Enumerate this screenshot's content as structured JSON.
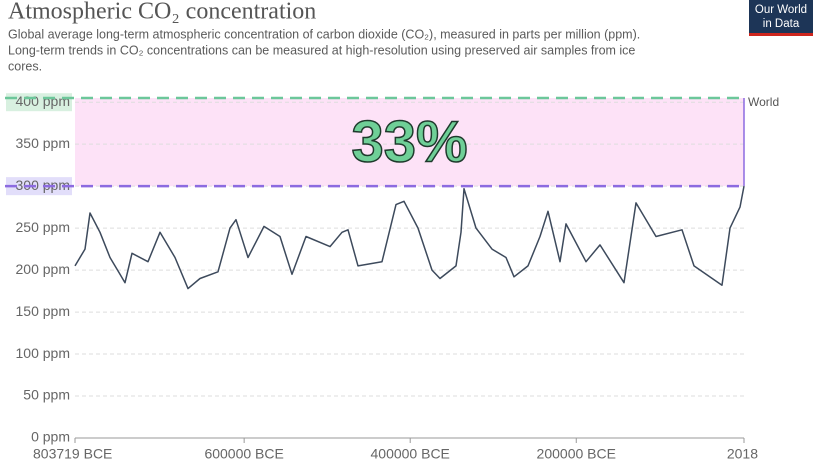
{
  "chart_data": {
    "type": "line",
    "title": "Atmospheric CO₂ concentration",
    "subtitle": [
      "Global average long-term atmospheric concentration of carbon dioxide (CO₂), measured in parts per million (ppm).",
      "Long-term trends in CO₂ concentrations can be measured at high-resolution using preserved air samples from ice",
      "cores."
    ],
    "logo": [
      "Our World",
      "in Data"
    ],
    "annotation": "33%",
    "x": [
      -803719,
      -791700,
      -785650,
      -773600,
      -761600,
      -749500,
      -743500,
      -735100,
      -715800,
      -701300,
      -683300,
      -667600,
      -653200,
      -631500,
      -617000,
      -609800,
      -595400,
      -576100,
      -556800,
      -542400,
      -525500,
      -496600,
      -482100,
      -474900,
      -462900,
      -434000,
      -417100,
      -407500,
      -390600,
      -373700,
      -364100,
      -344800,
      -338800,
      -335200,
      -320800,
      -301500,
      -284600,
      -275000,
      -258100,
      -243700,
      -234000,
      -219600,
      -212400,
      -188300,
      -171400,
      -142500,
      -128100,
      -104000,
      -72600,
      -58200,
      -24500,
      -14800,
      -2800,
      2018
    ],
    "series": [
      {
        "name": "World",
        "color": "#3d4a5c",
        "values": [
          205,
          225,
          268,
          245,
          215,
          195,
          185,
          220,
          210,
          245,
          215,
          178,
          190,
          198,
          250,
          260,
          215,
          252,
          240,
          195,
          240,
          228,
          245,
          248,
          205,
          210,
          278,
          282,
          250,
          200,
          190,
          205,
          245,
          297,
          250,
          225,
          215,
          192,
          205,
          240,
          270,
          210,
          255,
          210,
          230,
          185,
          280,
          240,
          248,
          205,
          182,
          250,
          275,
          300
        ]
      }
    ],
    "xlim": [
      -803719,
      2018
    ],
    "xticks": [
      {
        "value": -803719,
        "label": "803719 BCE"
      },
      {
        "value": -600000,
        "label": "600000 BCE"
      },
      {
        "value": -400000,
        "label": "400000 BCE"
      },
      {
        "value": -200000,
        "label": "200000 BCE"
      },
      2018
    ],
    "ylim": [
      0,
      405
    ],
    "yticks": [
      {
        "value": 0,
        "label": "0 ppm"
      },
      {
        "value": 50,
        "label": "50 ppm"
      },
      {
        "value": 100,
        "label": "100 ppm"
      },
      {
        "value": 150,
        "label": "150 ppm"
      },
      {
        "value": 200,
        "label": "200 ppm"
      },
      {
        "value": 250,
        "label": "250 ppm"
      },
      {
        "value": 300,
        "label": "300 ppm",
        "highlight": "#e2defa"
      },
      {
        "value": 350,
        "label": "350 ppm"
      },
      {
        "value": 400,
        "label": "400 ppm",
        "highlight": "#d8f0e0"
      }
    ],
    "grid": true,
    "reference_lines": [
      {
        "value": 300,
        "color": "#8c6be0"
      },
      {
        "value": 405,
        "color": "#6cc79a"
      }
    ],
    "band_color": "#fde2f7",
    "annotation_color": "#6fcf97"
  }
}
